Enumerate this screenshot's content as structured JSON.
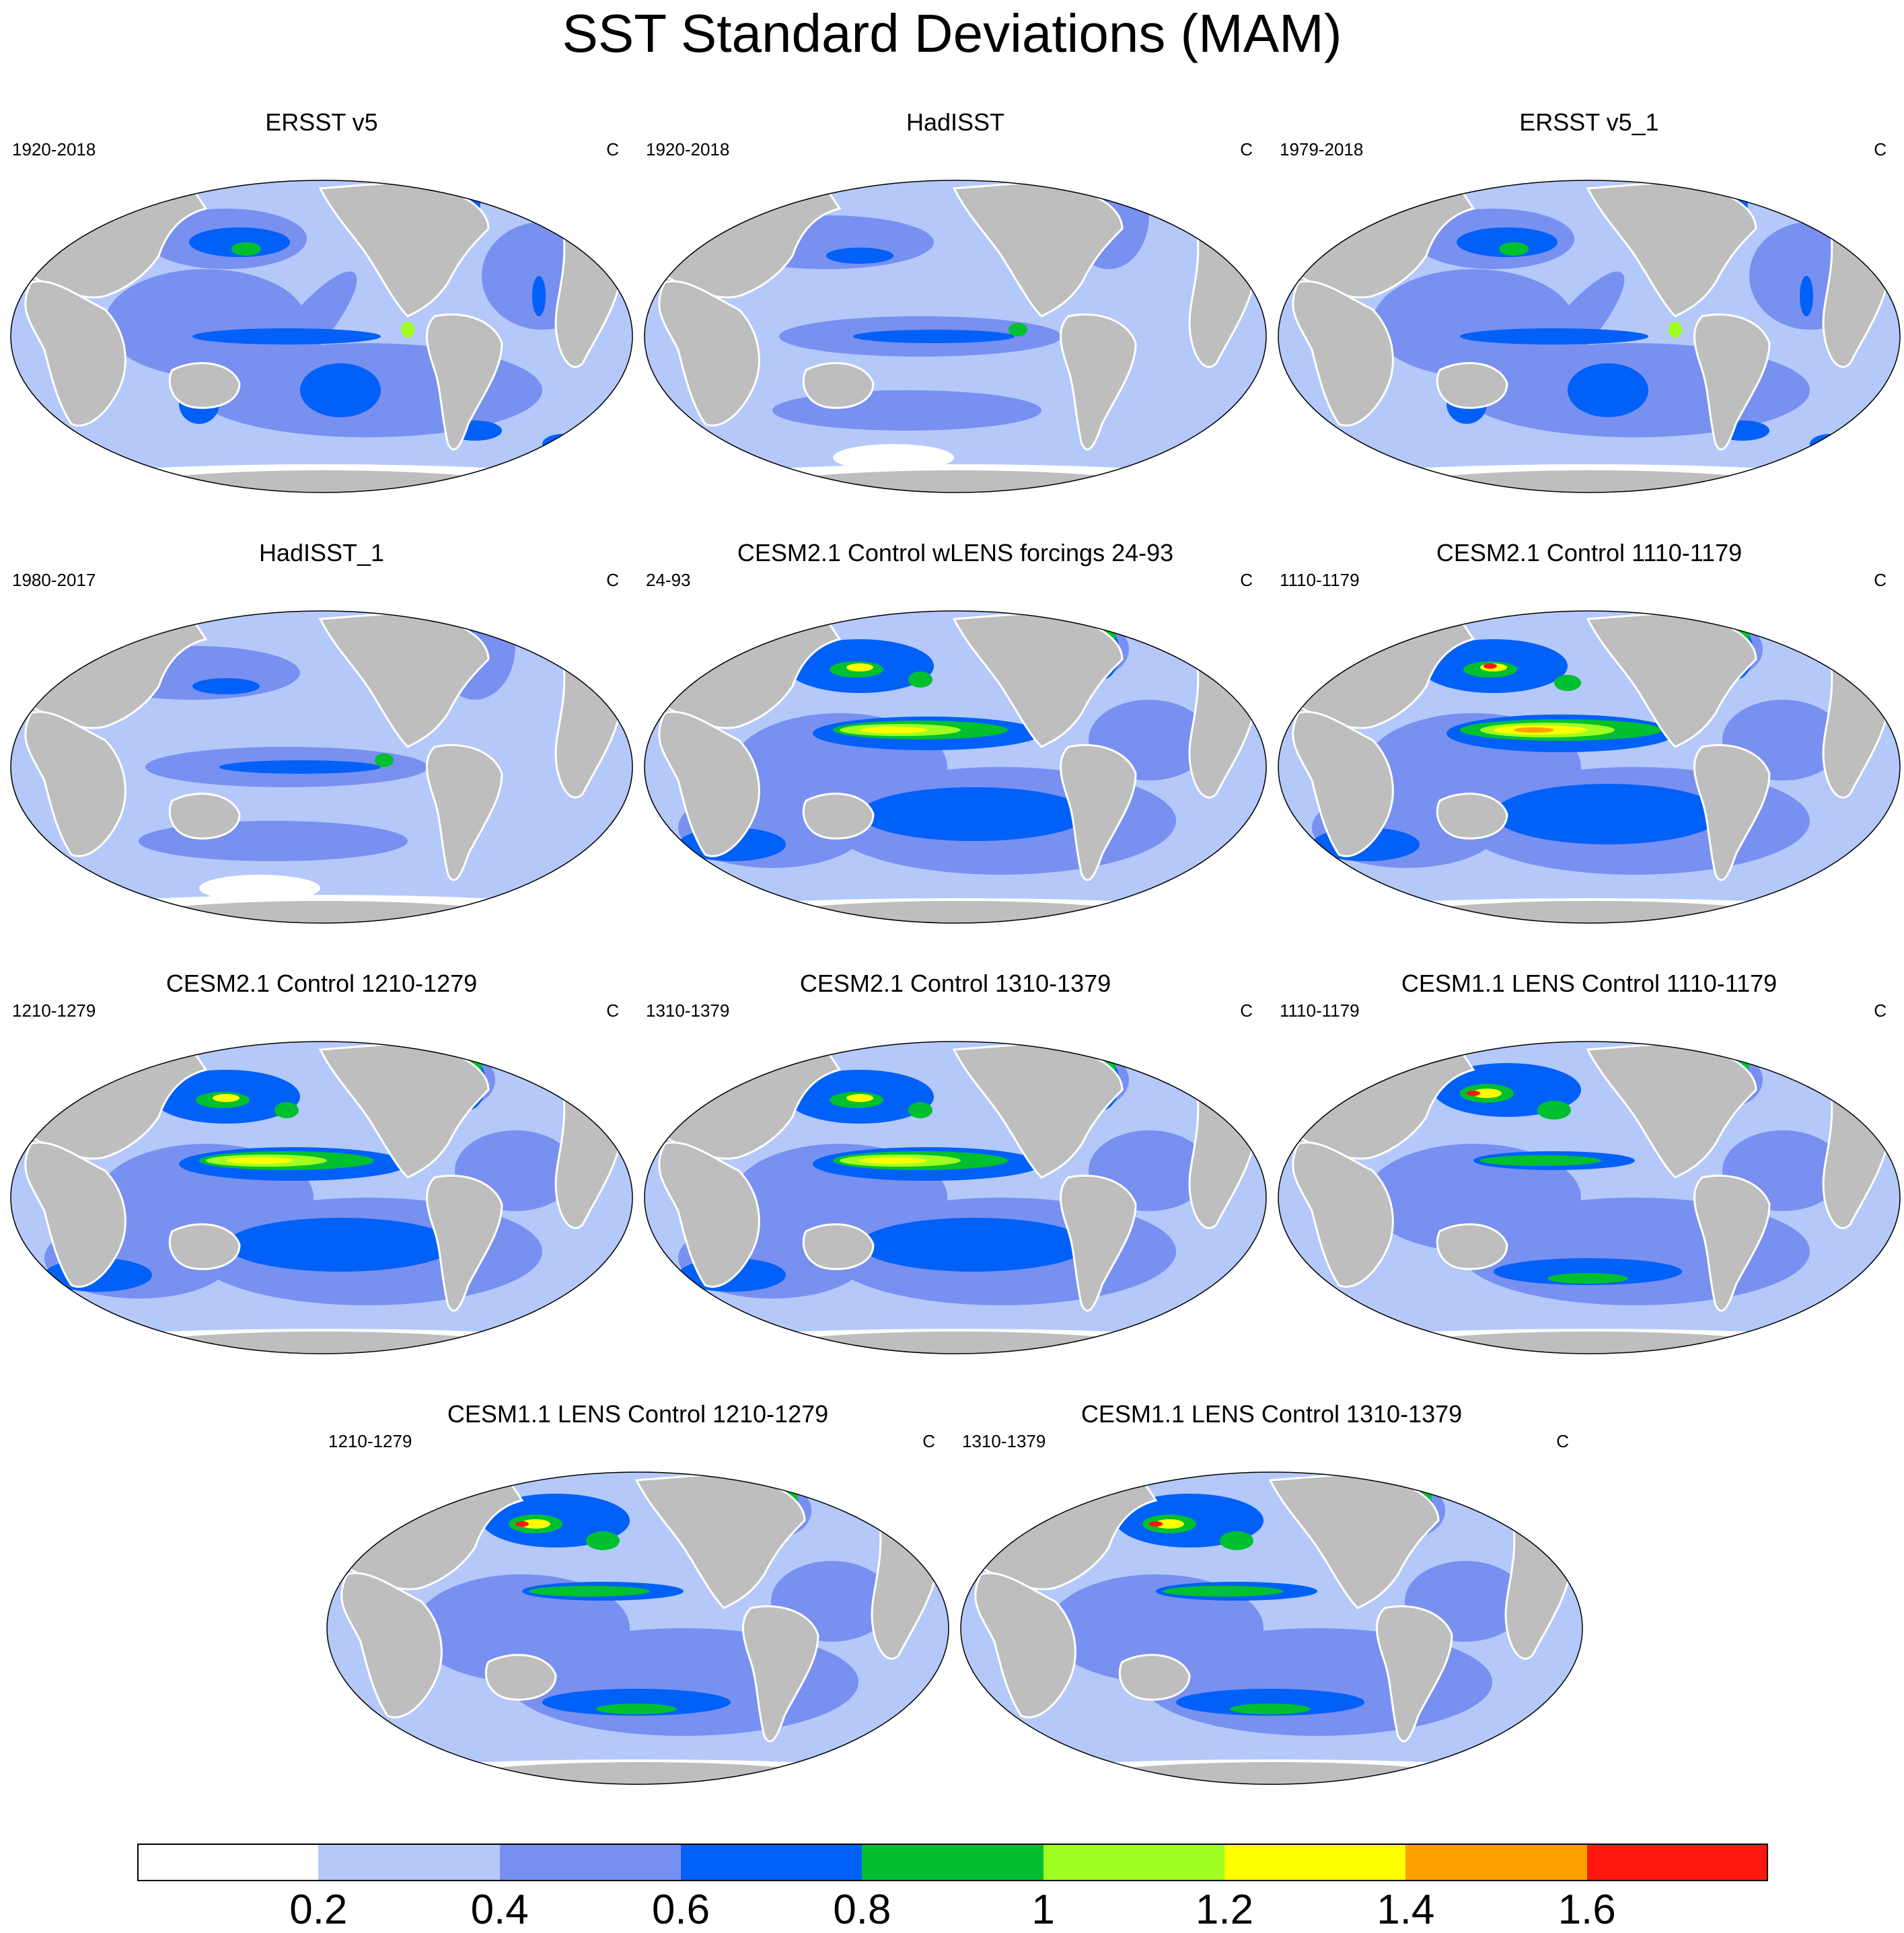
{
  "title": "SST Standard Deviations (MAM)",
  "units_label": "C",
  "panels": [
    {
      "title": "ERSST v5",
      "period": "1920-2018",
      "units": "C",
      "pattern": "obs_full"
    },
    {
      "title": "HadISST",
      "period": "1920-2018",
      "units": "C",
      "pattern": "obs_weak"
    },
    {
      "title": "ERSST v5_1",
      "period": "1979-2018",
      "units": "C",
      "pattern": "obs_full"
    },
    {
      "title": "HadISST_1",
      "period": "1980-2017",
      "units": "C",
      "pattern": "obs_weak"
    },
    {
      "title": "CESM2.1 Control wLENS forcings 24-93",
      "period": "24-93",
      "units": "C",
      "pattern": "cesm2"
    },
    {
      "title": "CESM2.1 Control 1110-1179",
      "period": "1110-1179",
      "units": "C",
      "pattern": "cesm2_strong"
    },
    {
      "title": "CESM2.1 Control 1210-1279",
      "period": "1210-1279",
      "units": "C",
      "pattern": "cesm2"
    },
    {
      "title": "CESM2.1 Control 1310-1379",
      "period": "1310-1379",
      "units": "C",
      "pattern": "cesm2"
    },
    {
      "title": "CESM1.1 LENS Control 1110-1179",
      "period": "1110-1179",
      "units": "C",
      "pattern": "cesm1"
    },
    {
      "title": "CESM1.1 LENS Control 1210-1279",
      "period": "1210-1279",
      "units": "C",
      "pattern": "cesm1"
    },
    {
      "title": "CESM1.1 LENS Control 1310-1379",
      "period": "1310-1379",
      "units": "C",
      "pattern": "cesm1"
    }
  ],
  "colorbar": {
    "levels": [
      "0.2",
      "0.4",
      "0.6",
      "0.8",
      "1",
      "1.2",
      "1.4",
      "1.6"
    ],
    "colors": [
      "#ffffff",
      "#b4c8fa",
      "#7890f0",
      "#0060f8",
      "#00c030",
      "#a0ff20",
      "#ffff00",
      "#ffa000",
      "#ff1810"
    ]
  },
  "colors": {
    "land": "#bebebe",
    "coast": "#ffffff"
  }
}
